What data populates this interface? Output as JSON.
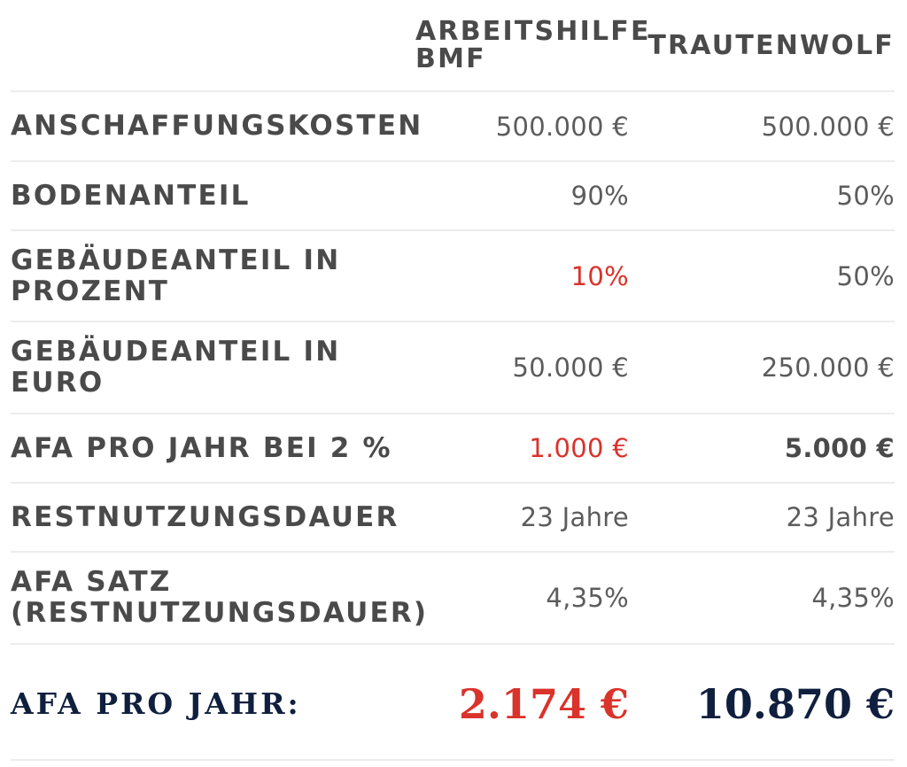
{
  "header": {
    "col1": "ARBEITSHILFE BMF",
    "col2": "TRAUTENWOLF"
  },
  "rows": [
    {
      "label": "ANSCHAFFUNGSKOSTEN",
      "bmf": "500.000 €",
      "trautenwolf": "500.000 €"
    },
    {
      "label": "BODENANTEIL",
      "bmf": "90%",
      "trautenwolf": "50%"
    },
    {
      "label": "GEBÄUDEANTEIL IN PROZENT",
      "bmf": "10%",
      "trautenwolf": "50%"
    },
    {
      "label": "GEBÄUDEANTEIL IN EURO",
      "bmf": "50.000 €",
      "trautenwolf": "250.000 €"
    },
    {
      "label": "AFA PRO JAHR BEI 2 %",
      "bmf": "1.000 €",
      "trautenwolf": "5.000 €"
    },
    {
      "label": "RESTNUTZUNGSDAUER",
      "bmf": "23 Jahre",
      "trautenwolf": "23 Jahre"
    },
    {
      "label": "AFA SATZ (RESTNUTZUNGSDAUER)",
      "bmf": "4,35%",
      "trautenwolf": "4,35%"
    }
  ],
  "total": {
    "label": "AFA PRO JAHR:",
    "bmf": "2.174 €",
    "trautenwolf": "10.870 €"
  },
  "colors": {
    "highlight_red": "#d9332b",
    "navy": "#0f1f3d",
    "label_gray": "#4a4a4a",
    "value_gray": "#5c5c5c",
    "divider": "#ececec"
  }
}
